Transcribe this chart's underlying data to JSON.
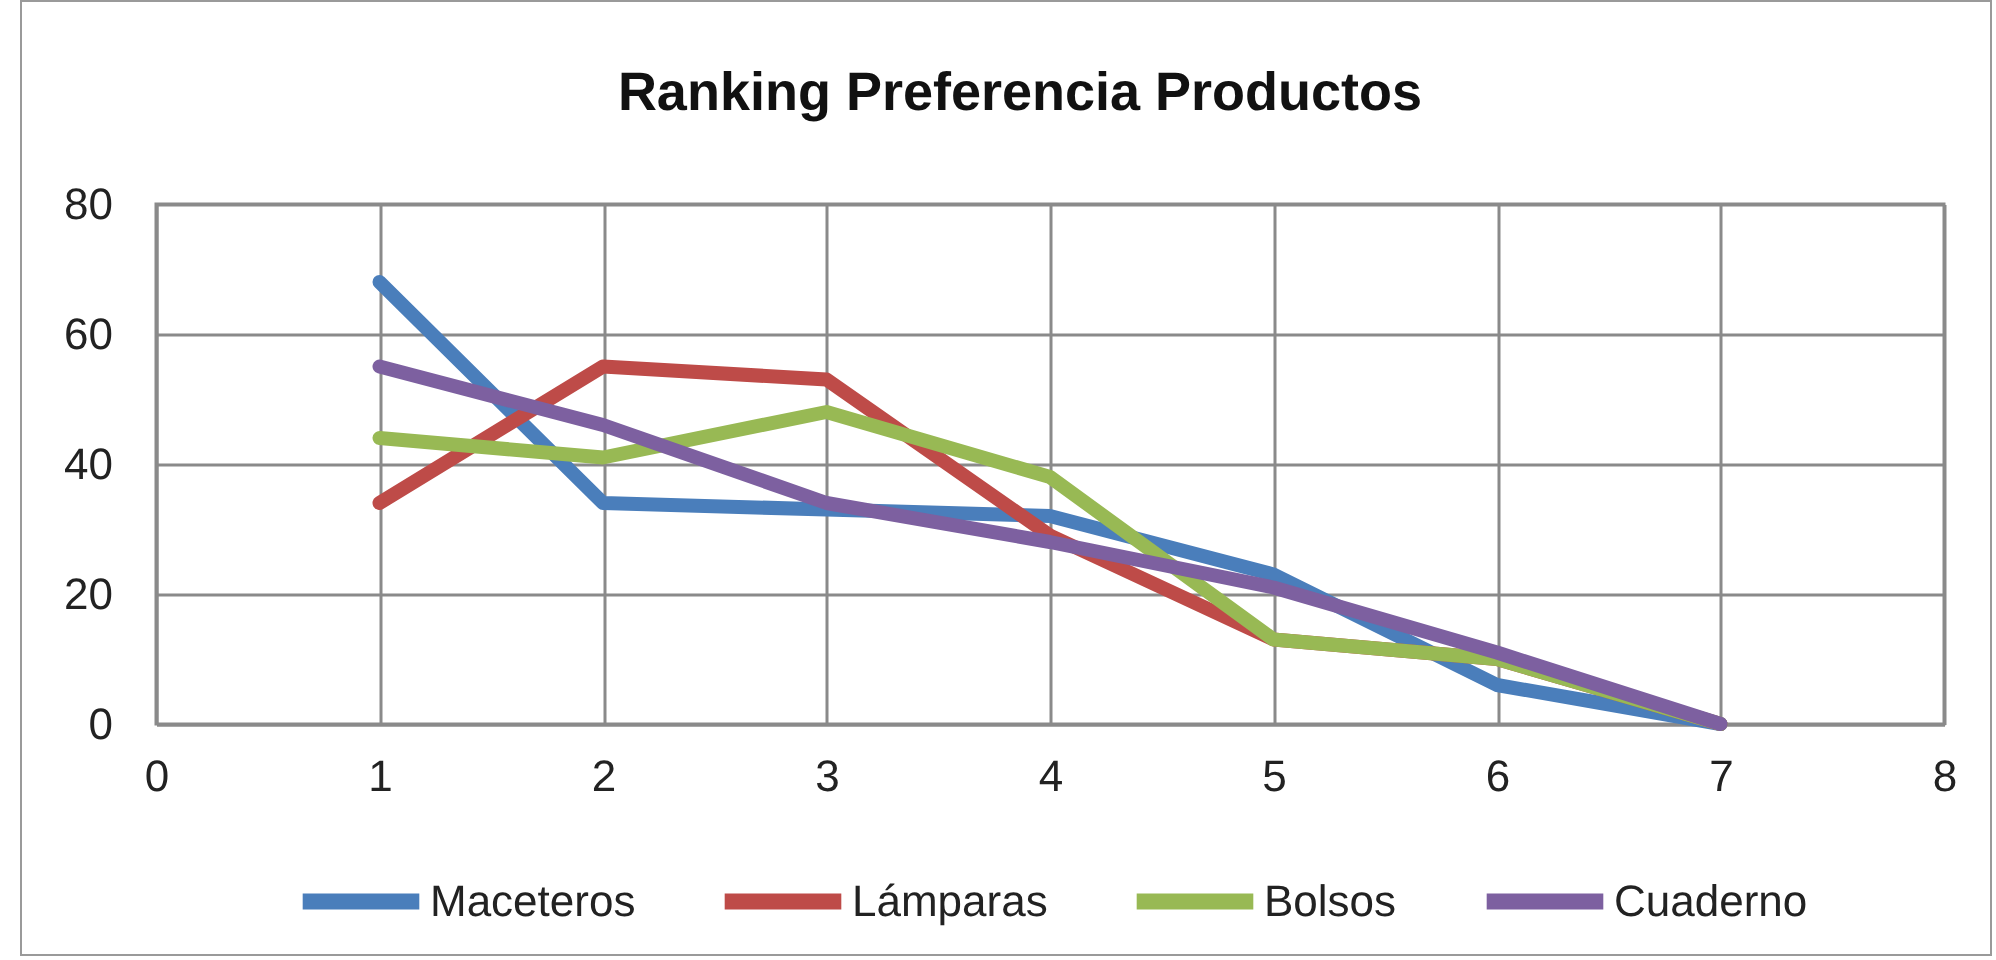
{
  "chart_data": {
    "type": "line",
    "title": "Ranking Preferencia Productos",
    "x": [
      1,
      2,
      3,
      4,
      5,
      6,
      7
    ],
    "series": [
      {
        "name": "Maceteros",
        "color": "#4a7ebb",
        "values": [
          68,
          34,
          33,
          32,
          23,
          6,
          0
        ]
      },
      {
        "name": "Lámparas",
        "color": "#be4b48",
        "values": [
          34,
          55,
          53,
          29,
          13,
          10,
          0
        ]
      },
      {
        "name": "Bolsos",
        "color": "#98b954",
        "values": [
          44,
          41,
          48,
          38,
          13,
          10,
          0
        ]
      },
      {
        "name": "Cuaderno",
        "color": "#7d60a0",
        "values": [
          55,
          46,
          34,
          28,
          21,
          11,
          0
        ]
      }
    ],
    "xlim": [
      0,
      8
    ],
    "xticks": [
      0,
      1,
      2,
      3,
      4,
      5,
      6,
      7,
      8
    ],
    "ylim": [
      0,
      80
    ],
    "yticks": [
      0,
      20,
      40,
      60,
      80
    ],
    "grid": true,
    "legend": "bottom",
    "line_style": "solid"
  }
}
